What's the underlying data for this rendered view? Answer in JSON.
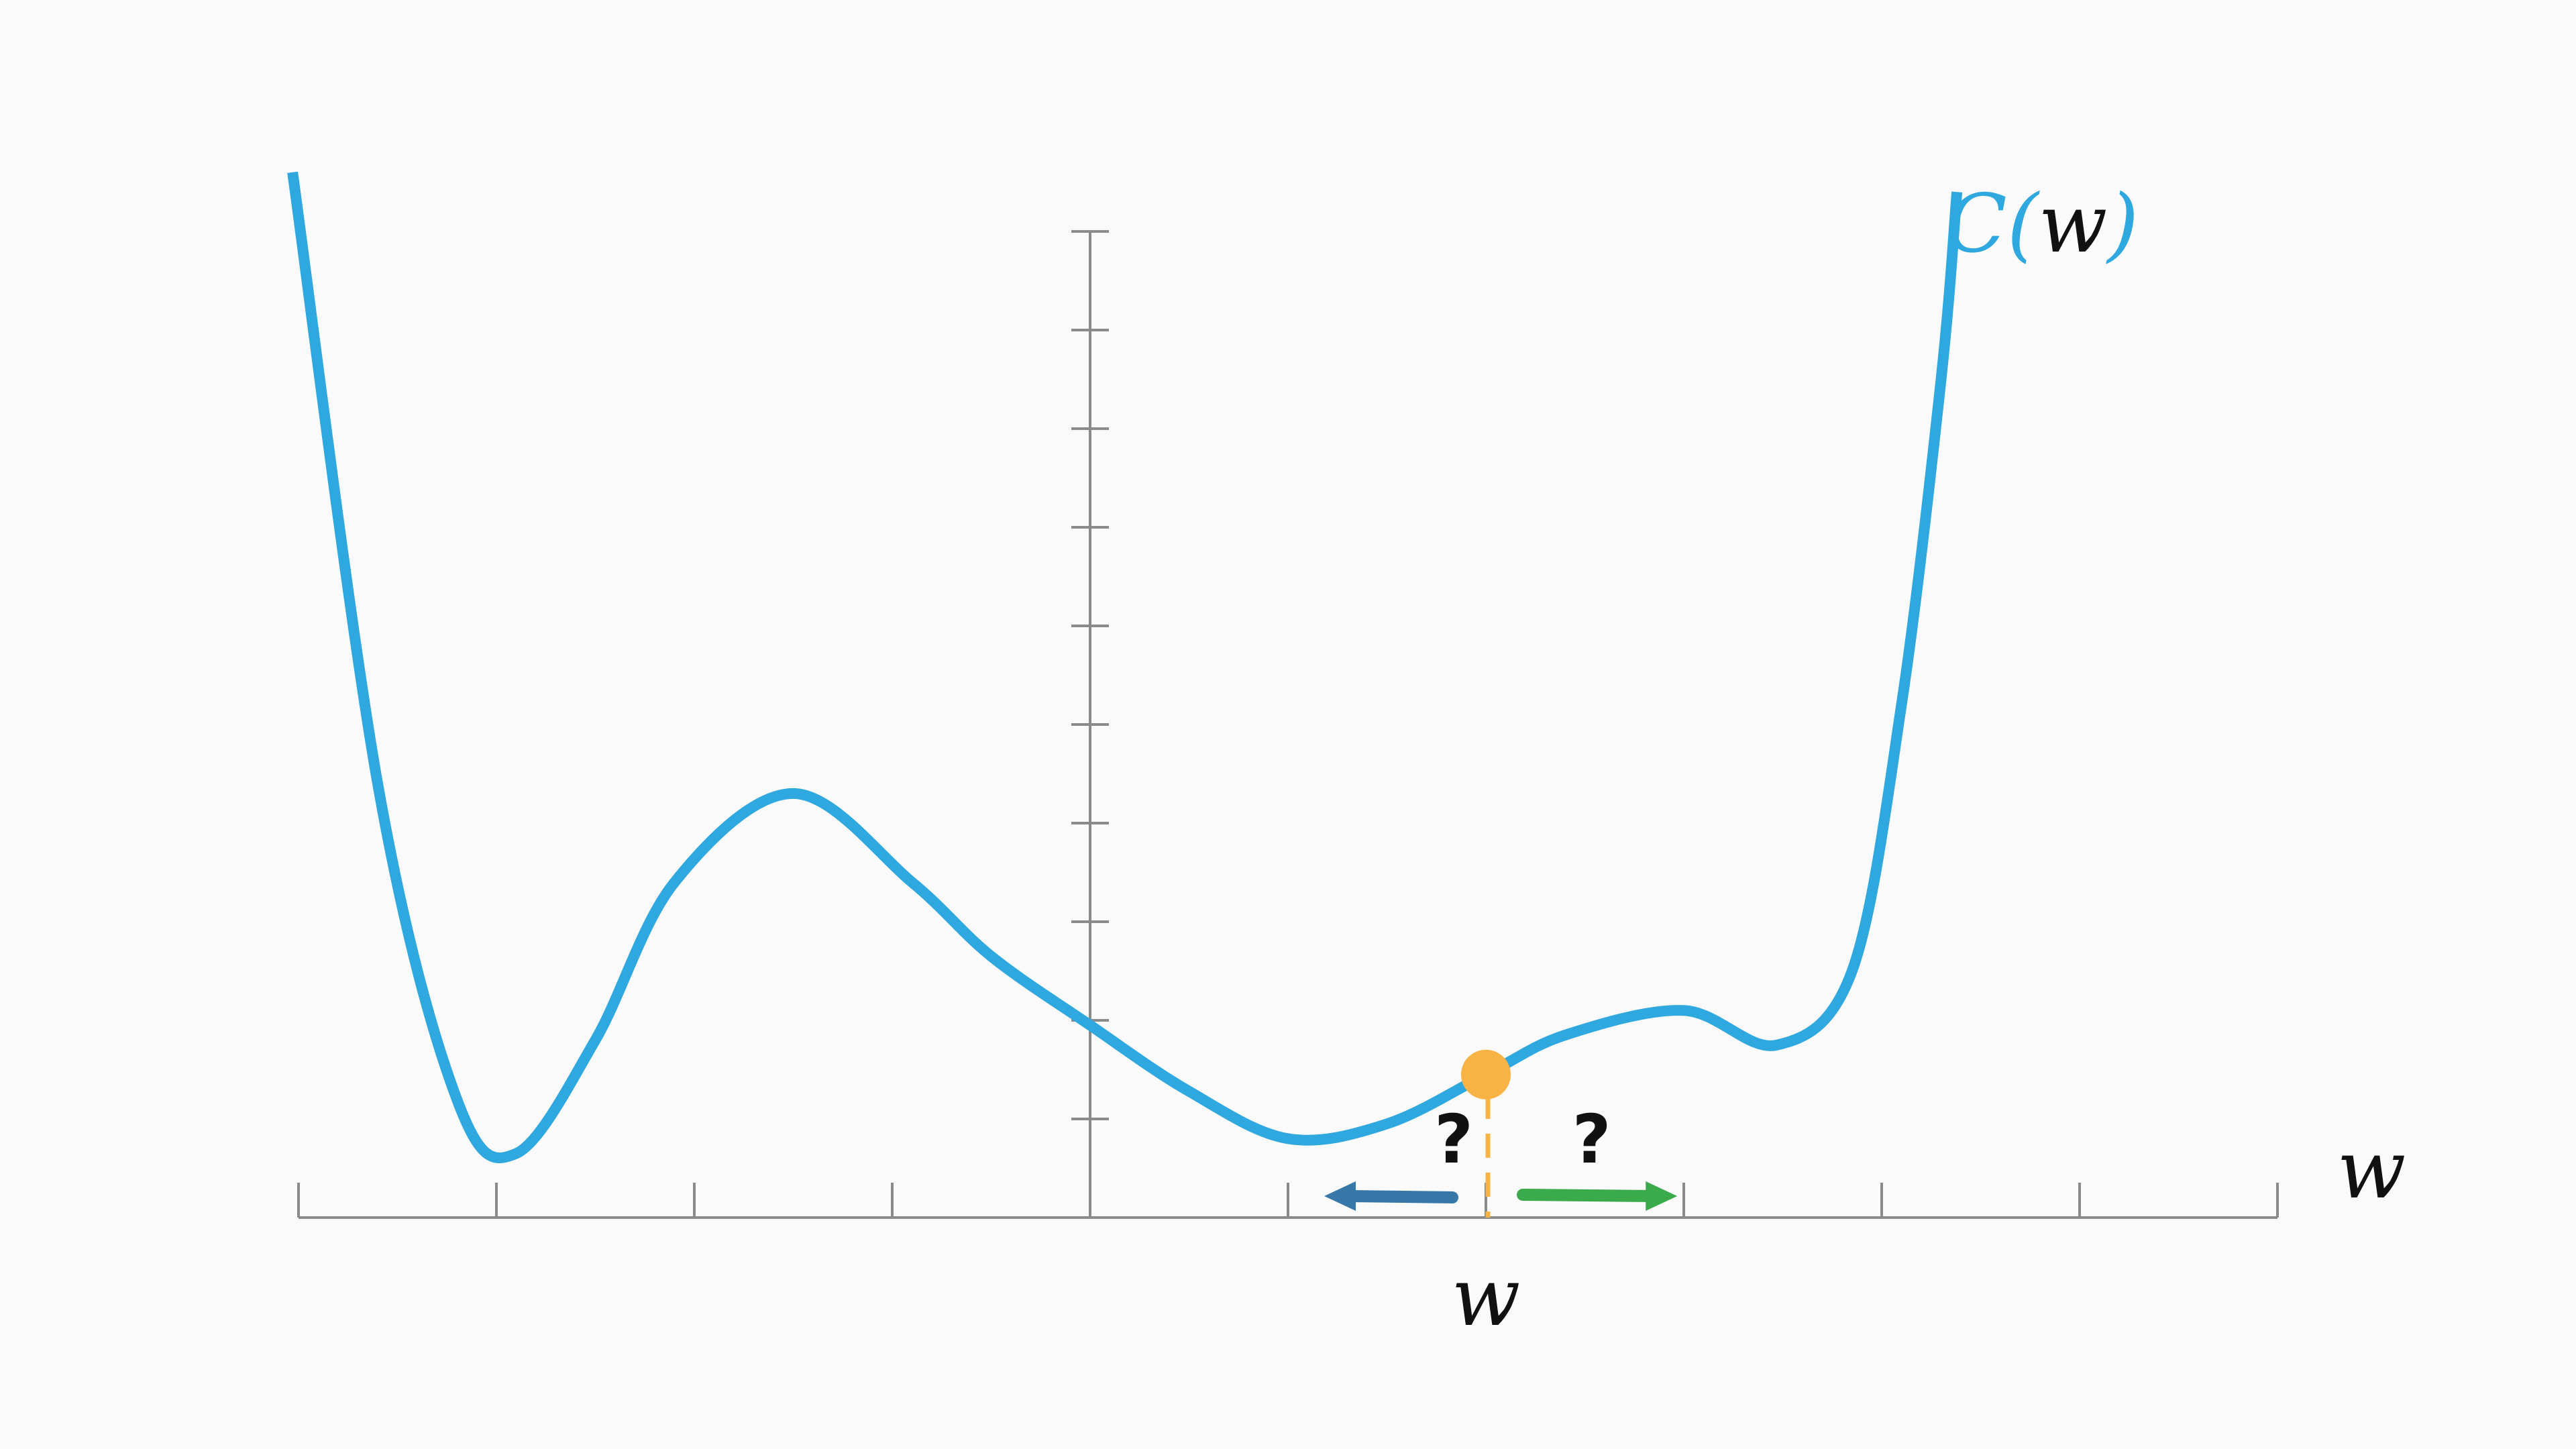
{
  "labels": {
    "curve_name_prefix": "C",
    "curve_open_paren": "(",
    "curve_variable": "w",
    "curve_close_paren": ")",
    "x_axis_label": "w",
    "point_label": "w",
    "left_question": "?",
    "right_question": "?"
  },
  "colors": {
    "background": "#fafafa",
    "curve": "#2ea8de",
    "axis": "#8a8a8a",
    "point": "#f9b244",
    "left_arrow": "#3878a8",
    "right_arrow": "#3aaa4a",
    "text": "#111111"
  },
  "chart_data": {
    "type": "line",
    "series": [
      {
        "name": "C(w)",
        "x": [
          -4.03,
          -3.6,
          -3.2,
          -2.9,
          -2.5,
          -2.1,
          -1.5,
          -0.9,
          -0.5,
          0.0,
          0.5,
          1.0,
          1.5,
          2.0,
          2.4,
          3.0,
          3.47,
          3.85,
          4.1,
          4.3,
          4.38
        ],
        "y": [
          10.6,
          4.4,
          1.2,
          0.65,
          1.8,
          3.4,
          4.3,
          3.4,
          2.65,
          1.95,
          1.28,
          0.8,
          0.95,
          1.45,
          1.85,
          2.1,
          1.75,
          2.5,
          5.2,
          8.5,
          10.4
        ]
      }
    ],
    "highlight_point": {
      "x": 2.0,
      "y": 1.45
    },
    "x_ticks": [
      -4,
      -3,
      -2,
      -1,
      0,
      1,
      2,
      3,
      4,
      5,
      6
    ],
    "y_ticks": [
      1,
      2,
      3,
      4,
      5,
      6,
      7,
      8,
      9,
      10
    ],
    "xlim": [
      -4,
      6
    ],
    "ylim": [
      0,
      10
    ],
    "xlabel": "w",
    "ylabel": "",
    "grid": false
  }
}
